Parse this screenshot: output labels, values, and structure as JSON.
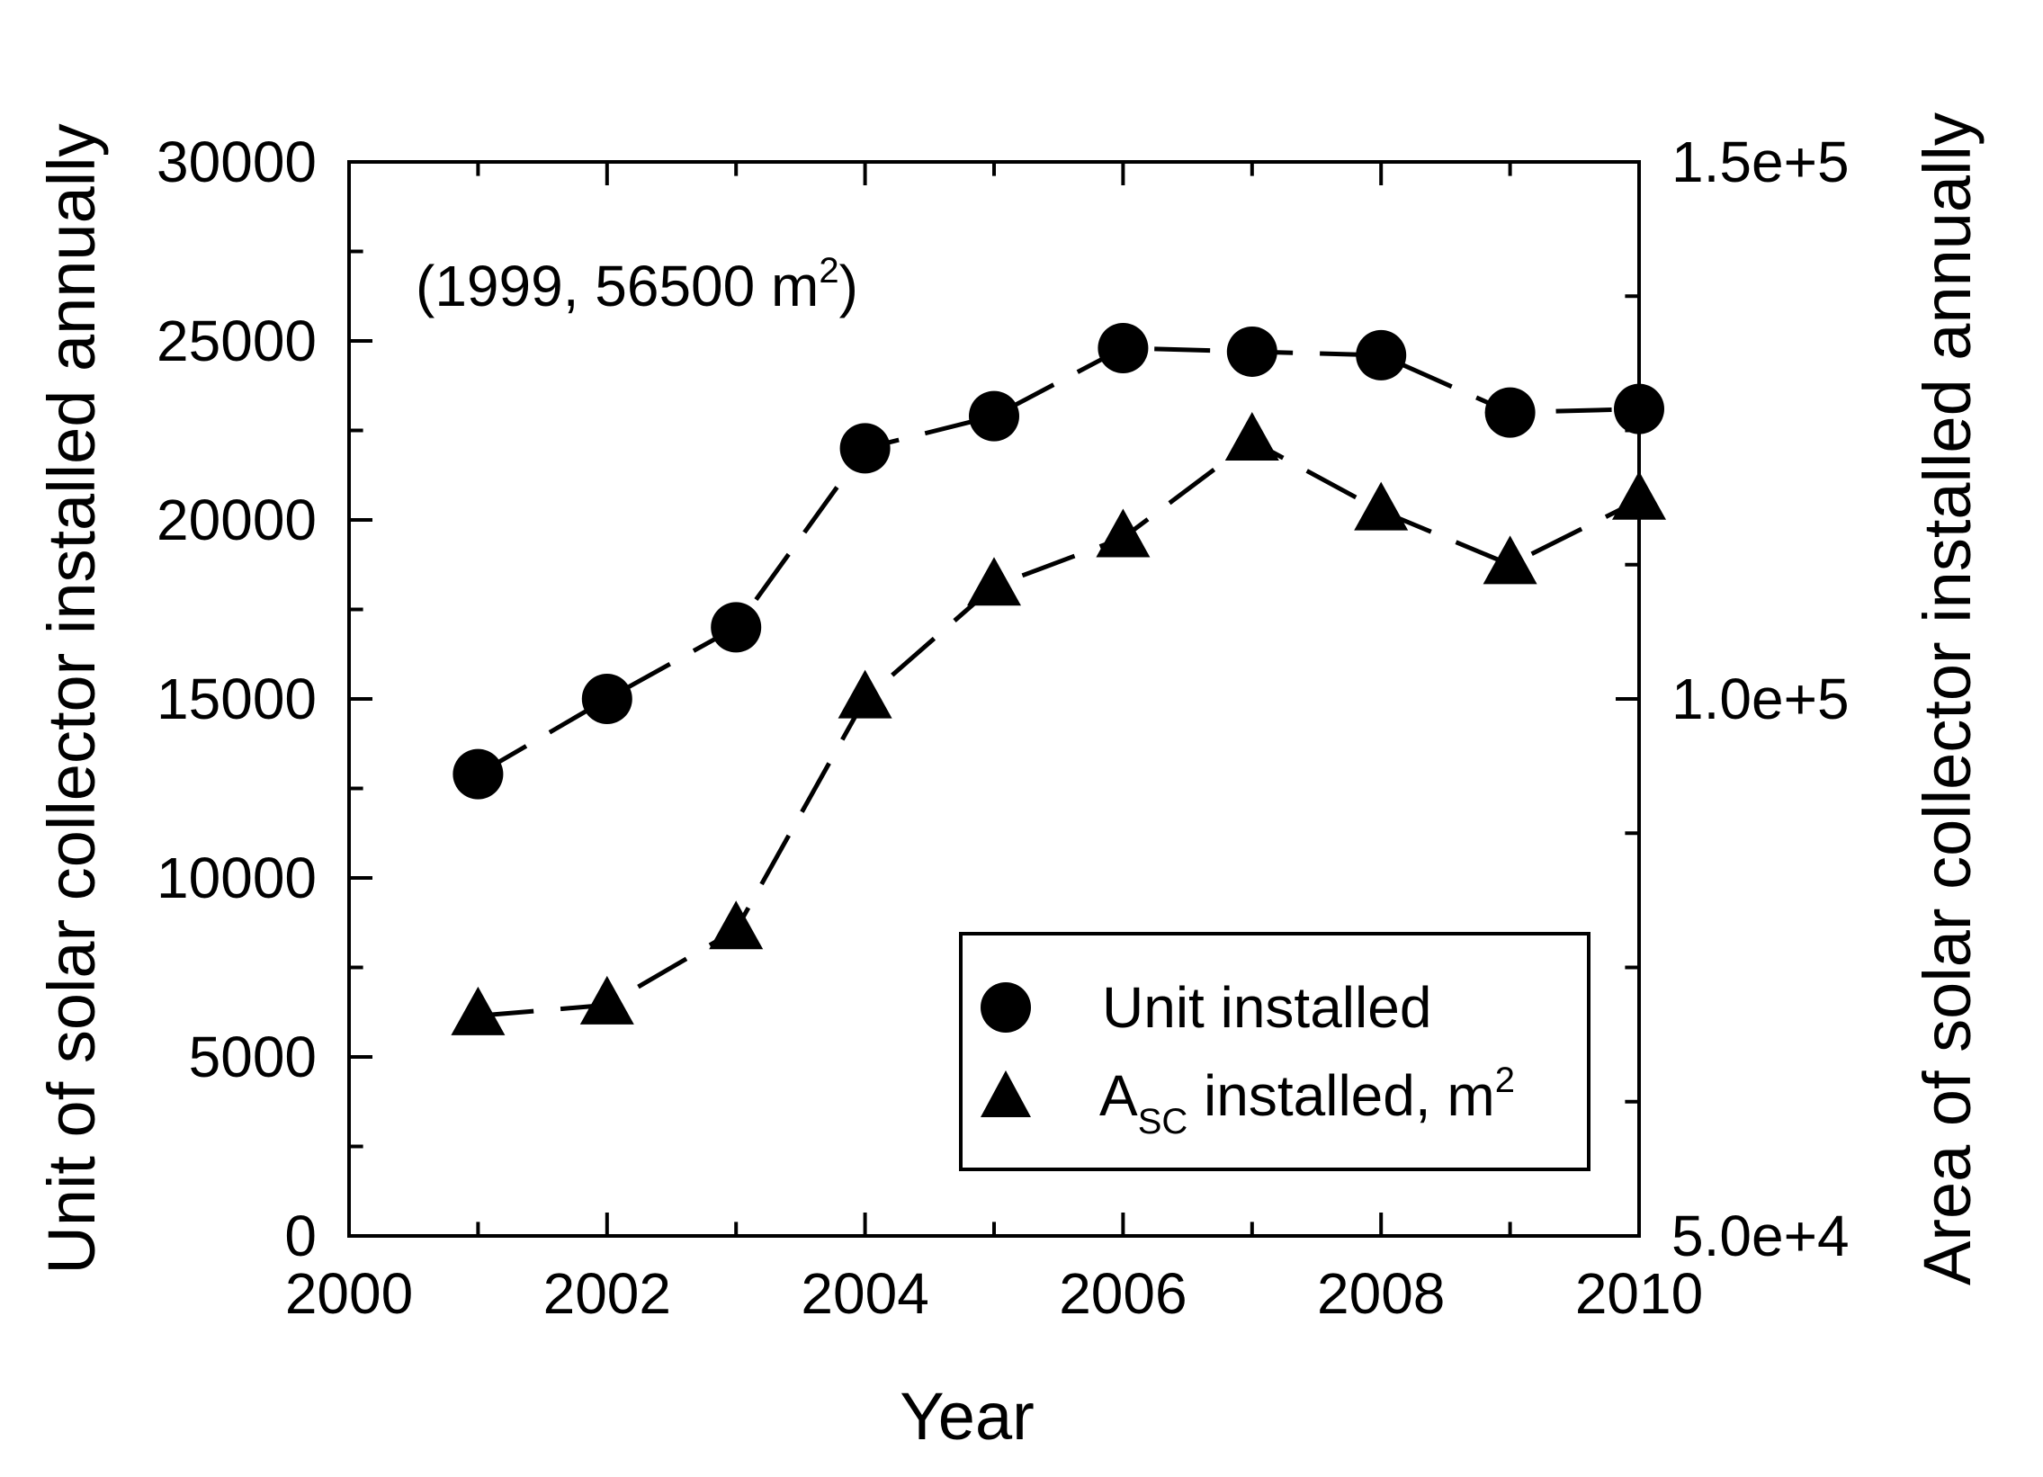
{
  "chart_data": {
    "type": "line",
    "title": "",
    "xlabel": "Year",
    "ylabel": "Unit of solar collector installed annually",
    "y2label": "Area of solar collector installed annually",
    "xlim": [
      2000,
      2010
    ],
    "ylim": [
      0,
      30000
    ],
    "y2lim": [
      50000,
      150000
    ],
    "x_ticks": [
      "2000",
      "2002",
      "2004",
      "2006",
      "2008",
      "2010"
    ],
    "y_ticks": [
      "0",
      "5000",
      "10000",
      "15000",
      "20000",
      "25000",
      "30000"
    ],
    "y2_ticks": [
      "5.0e+4",
      "1.0e+5",
      "1.5e+5"
    ],
    "annotation": {
      "text": "(1999, 56500 m",
      "sup": "2",
      "close": ")"
    },
    "legend": {
      "position": "bottom-right",
      "unit_label": "Unit installed",
      "area_label_main": "A",
      "area_label_sub": "SC",
      "area_label_rest": " installed, m",
      "area_label_sup": "2"
    },
    "series": [
      {
        "name": "Unit installed",
        "axis": "left",
        "marker": "circle",
        "line": "dashed",
        "x": [
          2001,
          2002,
          2003,
          2004,
          2005,
          2006,
          2007,
          2008,
          2009,
          2010
        ],
        "values": [
          12900,
          15000,
          17000,
          22000,
          22900,
          24800,
          24700,
          24600,
          23000,
          23100
        ]
      },
      {
        "name": "ASC installed, m2",
        "axis": "right",
        "marker": "triangle",
        "line": "dashed",
        "x": [
          2001,
          2002,
          2003,
          2004,
          2005,
          2006,
          2007,
          2008,
          2009,
          2010
        ],
        "values": [
          70500,
          71500,
          78500,
          100000,
          110500,
          115000,
          124000,
          117500,
          112500,
          118500
        ]
      }
    ]
  }
}
